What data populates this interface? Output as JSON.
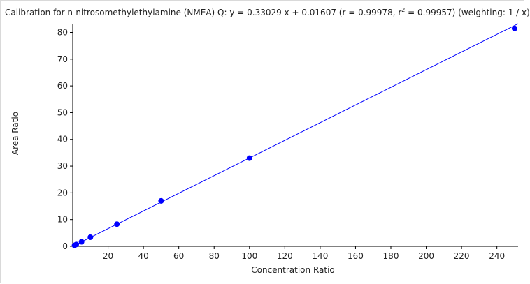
{
  "chart_data": {
    "type": "scatter",
    "title_prefix": "Calibration for n-nitrosomethylethylamine (NMEA) Q: y = 0.33029 x + 0.01607 (r = 0.99978, r",
    "title_sup": "2",
    "title_suffix": " = 0.99957)  (weighting: 1 / x)",
    "xlabel": "Concentration Ratio",
    "ylabel": "Area Ratio",
    "xlim": [
      0,
      252
    ],
    "ylim": [
      0,
      83
    ],
    "x_ticks": [
      20,
      40,
      60,
      80,
      100,
      120,
      140,
      160,
      180,
      200,
      220,
      240
    ],
    "y_ticks": [
      0,
      10,
      20,
      30,
      40,
      50,
      60,
      70,
      80
    ],
    "fit": {
      "slope": 0.33029,
      "intercept": 0.01607
    },
    "series": [
      {
        "x": [
          1,
          2,
          5,
          10,
          25,
          50,
          100,
          250
        ],
        "y": [
          0.35,
          0.7,
          1.7,
          3.4,
          8.3,
          17.0,
          33.0,
          81.5
        ]
      }
    ],
    "grid": false,
    "colors": {
      "points": "#0000ff",
      "fit_line": "#0000ff",
      "axis": "#000000"
    }
  }
}
